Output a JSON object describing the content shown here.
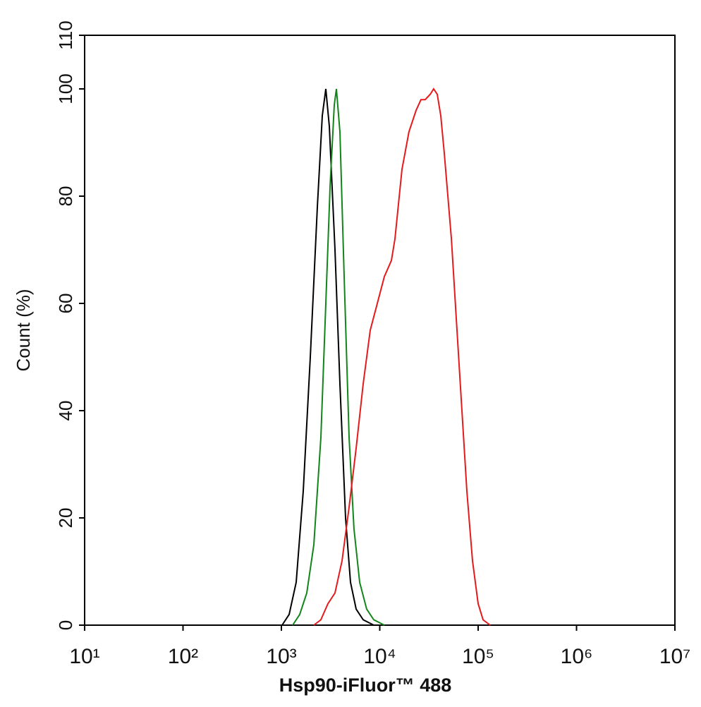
{
  "chart_data": {
    "type": "line",
    "xlabel": "Hsp90-iFluor™ 488",
    "ylabel": "Count  (%)",
    "xscale": "log",
    "xlim": [
      10,
      10000000
    ],
    "xticks": [
      {
        "value": 10,
        "label": "10¹"
      },
      {
        "value": 100,
        "label": "10²"
      },
      {
        "value": 1000,
        "label": "10³"
      },
      {
        "value": 10000,
        "label": "10⁴"
      },
      {
        "value": 100000,
        "label": "10⁵"
      },
      {
        "value": 1000000,
        "label": "10⁶"
      },
      {
        "value": 10000000,
        "label": "10⁷"
      }
    ],
    "ylim": [
      0,
      110
    ],
    "yticks": [
      0,
      20,
      40,
      60,
      80,
      100,
      110
    ],
    "series": [
      {
        "color": "#000000",
        "x": [
          1016,
          1199,
          1415,
          1668,
          1968,
          2322,
          2606,
          2831,
          3070,
          3506,
          3936,
          4488,
          5044,
          5754,
          6790,
          8690
        ],
        "values": [
          0,
          2,
          8,
          25,
          50,
          78,
          95,
          100,
          93,
          70,
          45,
          20,
          8,
          3,
          1,
          0
        ]
      },
      {
        "color": "#11851a",
        "x": [
          1303,
          1535,
          1811,
          2138,
          2520,
          2831,
          3126,
          3451,
          3622,
          3936,
          4345,
          4876,
          5470,
          6250,
          7362,
          8690,
          11140
        ],
        "values": [
          0,
          2,
          6,
          15,
          35,
          60,
          82,
          97,
          100,
          92,
          65,
          35,
          18,
          8,
          3,
          1,
          0
        ]
      },
      {
        "color": "#e41a1c",
        "x": [
          2138,
          2520,
          2972,
          3506,
          4132,
          4876,
          5754,
          6790,
          8000,
          9441,
          11140,
          13120,
          14260,
          16830,
          19820,
          23390,
          26240,
          28970,
          32580,
          35320,
          38370,
          41690,
          45290,
          53460,
          60950,
          68390,
          76740,
          87700,
          100000,
          112200,
          132400
        ],
        "values": [
          0,
          1,
          4,
          6,
          12,
          22,
          33,
          45,
          55,
          60,
          65,
          68,
          72,
          85,
          92,
          96,
          98,
          98,
          99,
          100,
          99,
          95,
          88,
          72,
          55,
          40,
          25,
          12,
          4,
          1,
          0
        ]
      }
    ]
  }
}
